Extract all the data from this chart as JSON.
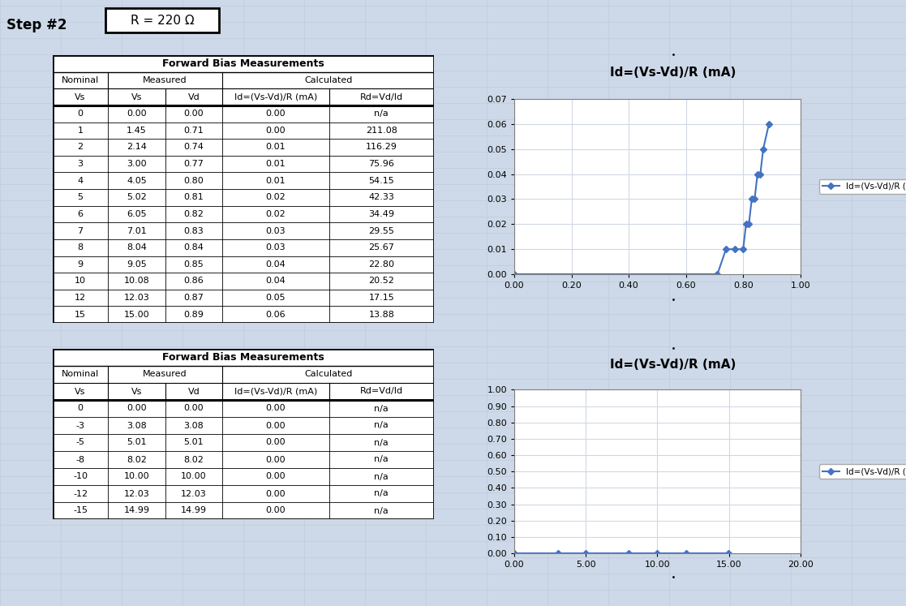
{
  "title": "Step #2",
  "resistance_label": "R = 220 Ω",
  "bg_color": "#cdd9e8",
  "table_bg": "#ffffff",
  "chart1": {
    "title": "Id=(Vs-Vd)/R (mA)",
    "x": [
      0.0,
      0.71,
      0.74,
      0.77,
      0.8,
      0.81,
      0.82,
      0.83,
      0.84,
      0.85,
      0.86,
      0.87,
      0.89
    ],
    "y": [
      0.0,
      0.0,
      0.01,
      0.01,
      0.01,
      0.02,
      0.02,
      0.03,
      0.03,
      0.04,
      0.04,
      0.05,
      0.06
    ],
    "xlim": [
      0.0,
      1.0
    ],
    "ylim": [
      0.0,
      0.07
    ],
    "xticks": [
      0.0,
      0.2,
      0.4,
      0.6,
      0.8,
      1.0
    ],
    "yticks": [
      0.0,
      0.01,
      0.02,
      0.03,
      0.04,
      0.05,
      0.06,
      0.07
    ],
    "xtick_labels": [
      "0.00",
      "0.20",
      "0.40",
      "0.60",
      "0.80",
      "1.00"
    ],
    "ytick_labels": [
      "0.00",
      "0.01",
      "0.02",
      "0.03",
      "0.04",
      "0.05",
      "0.06",
      "0.07"
    ],
    "legend": "Id=(Vs-Vd)/R (mA)"
  },
  "chart2": {
    "title": "Id=(Vs-Vd)/R (mA)",
    "x": [
      0.0,
      3.08,
      5.01,
      8.02,
      10.0,
      12.03,
      14.99
    ],
    "y": [
      0.0,
      0.0,
      0.0,
      0.0,
      0.0,
      0.0,
      0.0
    ],
    "xlim": [
      0.0,
      20.0
    ],
    "ylim": [
      0.0,
      1.0
    ],
    "xticks": [
      0.0,
      5.0,
      10.0,
      15.0,
      20.0
    ],
    "yticks": [
      0.0,
      0.1,
      0.2,
      0.3,
      0.4,
      0.5,
      0.6,
      0.7,
      0.8,
      0.9,
      1.0
    ],
    "xtick_labels": [
      "0.00",
      "5.00",
      "10.00",
      "15.00",
      "20.00"
    ],
    "ytick_labels": [
      "0.00",
      "0.10",
      "0.20",
      "0.30",
      "0.40",
      "0.50",
      "0.60",
      "0.70",
      "0.80",
      "0.90",
      "1.00"
    ],
    "legend": "Id=(Vs-Vd)/R (mA)"
  },
  "table1_data": [
    [
      "0",
      "0.00",
      "0.00",
      "0.00",
      "n/a"
    ],
    [
      "1",
      "1.45",
      "0.71",
      "0.00",
      "211.08"
    ],
    [
      "2",
      "2.14",
      "0.74",
      "0.01",
      "116.29"
    ],
    [
      "3",
      "3.00",
      "0.77",
      "0.01",
      "75.96"
    ],
    [
      "4",
      "4.05",
      "0.80",
      "0.01",
      "54.15"
    ],
    [
      "5",
      "5.02",
      "0.81",
      "0.02",
      "42.33"
    ],
    [
      "6",
      "6.05",
      "0.82",
      "0.02",
      "34.49"
    ],
    [
      "7",
      "7.01",
      "0.83",
      "0.03",
      "29.55"
    ],
    [
      "8",
      "8.04",
      "0.84",
      "0.03",
      "25.67"
    ],
    [
      "9",
      "9.05",
      "0.85",
      "0.04",
      "22.80"
    ],
    [
      "10",
      "10.08",
      "0.86",
      "0.04",
      "20.52"
    ],
    [
      "12",
      "12.03",
      "0.87",
      "0.05",
      "17.15"
    ],
    [
      "15",
      "15.00",
      "0.89",
      "0.06",
      "13.88"
    ]
  ],
  "table2_data": [
    [
      "0",
      "0.00",
      "0.00",
      "0.00",
      "n/a"
    ],
    [
      "-3",
      "3.08",
      "3.08",
      "0.00",
      "n/a"
    ],
    [
      "-5",
      "5.01",
      "5.01",
      "0.00",
      "n/a"
    ],
    [
      "-8",
      "8.02",
      "8.02",
      "0.00",
      "n/a"
    ],
    [
      "-10",
      "10.00",
      "10.00",
      "0.00",
      "n/a"
    ],
    [
      "-12",
      "12.03",
      "12.03",
      "0.00",
      "n/a"
    ],
    [
      "-15",
      "14.99",
      "14.99",
      "0.00",
      "n/a"
    ]
  ],
  "line_color": "#4472c4",
  "marker_style": "D",
  "marker_size": 4,
  "chart_outer_bg": "#dce6f1",
  "chart_inner_bg": "#ffffff",
  "chart_border_color": "#5b9bd5",
  "grid_line_color": "#d0d8e4"
}
